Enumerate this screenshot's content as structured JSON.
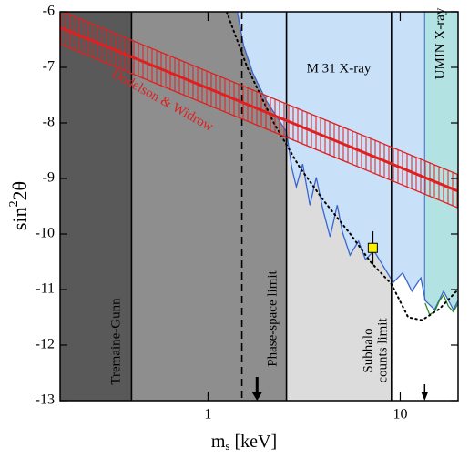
{
  "chart_data": {
    "type": "exclusion",
    "x_label": [
      "m",
      "s",
      " [keV]"
    ],
    "y_label": [
      "sin",
      "2",
      "2θ"
    ],
    "log_x": true,
    "xlim": [
      0.17,
      20
    ],
    "ylim": [
      -13,
      -6
    ],
    "xticks": [
      1,
      10
    ],
    "yticks": [
      -6,
      -7,
      -8,
      -9,
      -10,
      -11,
      -12,
      -13
    ],
    "regions": [
      {
        "x": [
          0.17,
          0.4
        ],
        "color": "#595959"
      },
      {
        "x": [
          0.4,
          2.56
        ],
        "color": "#8e8e8e"
      },
      {
        "x": [
          2.56,
          9.0
        ],
        "color": "#dcdcdc"
      },
      {
        "x": [
          9.0,
          20
        ],
        "color": "#ffffff"
      }
    ],
    "limits": [
      {
        "name": [
          "Tremaine-Gunn"
        ],
        "x": 0.4,
        "style": "solid"
      },
      {
        "x": 1.5,
        "style": "dashed"
      },
      {
        "name": [
          "Phase-space limit"
        ],
        "x": 2.56,
        "style": "solid"
      },
      {
        "name": [
          "Subhalo",
          "counts limit"
        ],
        "x": 9.0,
        "style": "solid"
      }
    ],
    "series": [
      {
        "name": "M 31 X-ray",
        "color": "#3a66cc",
        "fill": "#c8e0f8",
        "x": [
          1.42,
          1.53,
          1.71,
          2.01,
          2.24,
          2.56,
          2.73,
          2.88,
          3.11,
          3.39,
          3.66,
          3.96,
          4.32,
          4.7,
          5.01,
          5.48,
          6.07,
          6.6,
          7.3,
          8.3,
          9.2,
          10.3,
          11.5,
          12.8,
          13.5,
          15.1,
          16.8,
          18.9,
          20
        ],
        "values": [
          -6,
          -6.6,
          -7.1,
          -7.6,
          -7.85,
          -8.16,
          -8.82,
          -9.15,
          -8.74,
          -9.48,
          -8.98,
          -9.56,
          -10.05,
          -9.48,
          -9.97,
          -10.38,
          -10.13,
          -10.46,
          -10.3,
          -10.62,
          -10.87,
          -10.7,
          -11.03,
          -10.79,
          -11.2,
          -11.36,
          -11.03,
          -11.36,
          -11.2
        ]
      },
      {
        "color": "#2a8a2a",
        "x": [
          13.5,
          14.2,
          15.1,
          16.0,
          16.8,
          17.8,
          18.9,
          20
        ],
        "values": [
          -11.25,
          -11.45,
          -11.4,
          -11.2,
          -11.1,
          -11.3,
          -11.4,
          -11.25
        ]
      },
      {
        "color": "#000000",
        "style": "dotted",
        "x": [
          1.25,
          1.6,
          2.2,
          3.0,
          4.0,
          5.5,
          7.0,
          9.0,
          11.0,
          13.0,
          16.0,
          20
        ],
        "values": [
          -6,
          -7,
          -8,
          -8.8,
          -9.4,
          -10,
          -10.5,
          -10.9,
          -11.5,
          -11.55,
          -11.35,
          -11
        ]
      }
    ],
    "umin": {
      "name": "UMIN X-ray",
      "x": 13.4,
      "color": "#4a7fd0",
      "fill": "#b3e2e2"
    },
    "band": {
      "name": "Dodelson & Widrow",
      "color": "#e02020",
      "x": [
        0.17,
        20
      ],
      "center": [
        -6.28,
        -9.23
      ],
      "upper": [
        -5.98,
        -8.93
      ],
      "lower": [
        -6.58,
        -9.53
      ]
    },
    "point": {
      "x": 7.2,
      "y": -10.25,
      "err": 0.3,
      "color": "#ffee00"
    },
    "arrows": [
      1.8,
      13.4
    ]
  }
}
